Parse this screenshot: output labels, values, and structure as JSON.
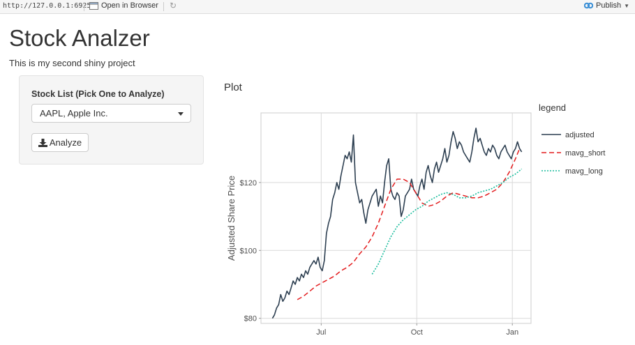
{
  "topbar": {
    "url": "http://127.0.0.1:6925",
    "open_browser_label": "Open in Browser",
    "publish_label": "Publish"
  },
  "app": {
    "title": "Stock Analzer",
    "subtitle": "This is my second shiny project"
  },
  "sidebar": {
    "stock_label": "Stock List (Pick One to Analyze)",
    "stock_selected": "AAPL, Apple Inc.",
    "analyze_label": "Analyze"
  },
  "plot": {
    "heading": "Plot"
  },
  "colors": {
    "adjusted": "#2c3e50",
    "mavg_short": "#e31a1c",
    "mavg_long": "#18bc9c",
    "publish_accent": "#3a8fd6"
  },
  "chart_data": {
    "type": "line",
    "ylabel": "Adjusted Share Price",
    "xlabel": "",
    "ylim": [
      78.5,
      140.5
    ],
    "y_ticks": [
      80,
      100,
      120
    ],
    "y_tick_labels": [
      "$80",
      "$100",
      "$120"
    ],
    "x_ticks": [
      47,
      139,
      231
    ],
    "x_tick_labels": [
      "Jul",
      "Oct",
      "Jan"
    ],
    "xlim": [
      -11,
      249
    ],
    "grid": true,
    "legend_title": "legend",
    "legend_position": "right",
    "series": [
      {
        "name": "adjusted",
        "dash": "solid",
        "x": [
          0,
          2,
          4,
          6,
          8,
          10,
          12,
          14,
          16,
          18,
          20,
          22,
          24,
          26,
          28,
          30,
          32,
          34,
          36,
          38,
          40,
          42,
          44,
          46,
          48,
          50,
          52,
          54,
          56,
          58,
          60,
          62,
          64,
          66,
          68,
          70,
          72,
          74,
          76,
          78,
          80,
          82,
          84,
          86,
          88,
          90,
          92,
          94,
          96,
          98,
          100,
          102,
          104,
          106,
          108,
          110,
          112,
          114,
          116,
          118,
          120,
          122,
          124,
          126,
          128,
          130,
          132,
          134,
          136,
          138,
          140,
          142,
          144,
          146,
          148,
          150,
          152,
          154,
          156,
          158,
          160,
          162,
          164,
          166,
          168,
          170,
          172,
          174,
          176,
          178,
          180,
          182,
          184,
          186,
          188,
          190,
          192,
          194,
          196,
          198,
          200,
          202,
          204,
          206,
          208,
          210,
          212,
          214,
          216,
          218,
          220,
          222,
          224,
          226,
          228,
          230,
          232,
          234,
          236,
          238,
          240
        ],
        "values": [
          80,
          81,
          83,
          84,
          87,
          85,
          86,
          88,
          87,
          89,
          91,
          90,
          92,
          91,
          93,
          92,
          94,
          93,
          95,
          96,
          97,
          96,
          98,
          95,
          94,
          97,
          105,
          108,
          110,
          115,
          117,
          120,
          118,
          122,
          125,
          128,
          127,
          129,
          126,
          134,
          120,
          117,
          114,
          115,
          111,
          108,
          112,
          114,
          116,
          117,
          118,
          113,
          116,
          114,
          120,
          125,
          127,
          118,
          116,
          115,
          117,
          116,
          110,
          112,
          116,
          117,
          118,
          121,
          118,
          117,
          116,
          119,
          121,
          118,
          123,
          125,
          122,
          120,
          124,
          126,
          123,
          125,
          127,
          130,
          126,
          128,
          132,
          135,
          133,
          130,
          132,
          131,
          129,
          128,
          127,
          126,
          129,
          133,
          136,
          132,
          133,
          131,
          129,
          128,
          130,
          129,
          131,
          130,
          128,
          127,
          129,
          130,
          131,
          129,
          128,
          127,
          129,
          130,
          132,
          130,
          129
        ]
      },
      {
        "name": "mavg_short",
        "dash": "dashed",
        "x": [
          24,
          30,
          36,
          42,
          48,
          54,
          60,
          66,
          72,
          78,
          84,
          90,
          96,
          102,
          108,
          114,
          120,
          126,
          132,
          138,
          144,
          150,
          156,
          162,
          168,
          174,
          180,
          186,
          192,
          198,
          204,
          210,
          216,
          222,
          228,
          234,
          238
        ],
        "values": [
          85.5,
          86.5,
          88,
          89.5,
          90.5,
          91.5,
          92.5,
          94,
          95,
          96.5,
          99,
          101,
          104,
          108,
          113,
          118,
          121,
          121,
          120,
          117,
          114,
          113,
          113.5,
          114.5,
          116,
          117,
          116.5,
          116,
          115.5,
          115.5,
          116,
          117,
          118,
          120,
          123,
          127,
          130
        ]
      },
      {
        "name": "mavg_long",
        "dash": "dotted",
        "x": [
          96,
          102,
          108,
          114,
          120,
          126,
          132,
          138,
          144,
          150,
          156,
          162,
          168,
          174,
          180,
          186,
          192,
          198,
          204,
          210,
          216,
          222,
          228,
          234,
          240
        ],
        "values": [
          93,
          96,
          100,
          104,
          107,
          109,
          110.5,
          112,
          113,
          114.5,
          115.5,
          116.5,
          117,
          116.5,
          115.5,
          115.5,
          116,
          117,
          117.5,
          118,
          119,
          120,
          121.5,
          122.5,
          124
        ]
      }
    ]
  }
}
